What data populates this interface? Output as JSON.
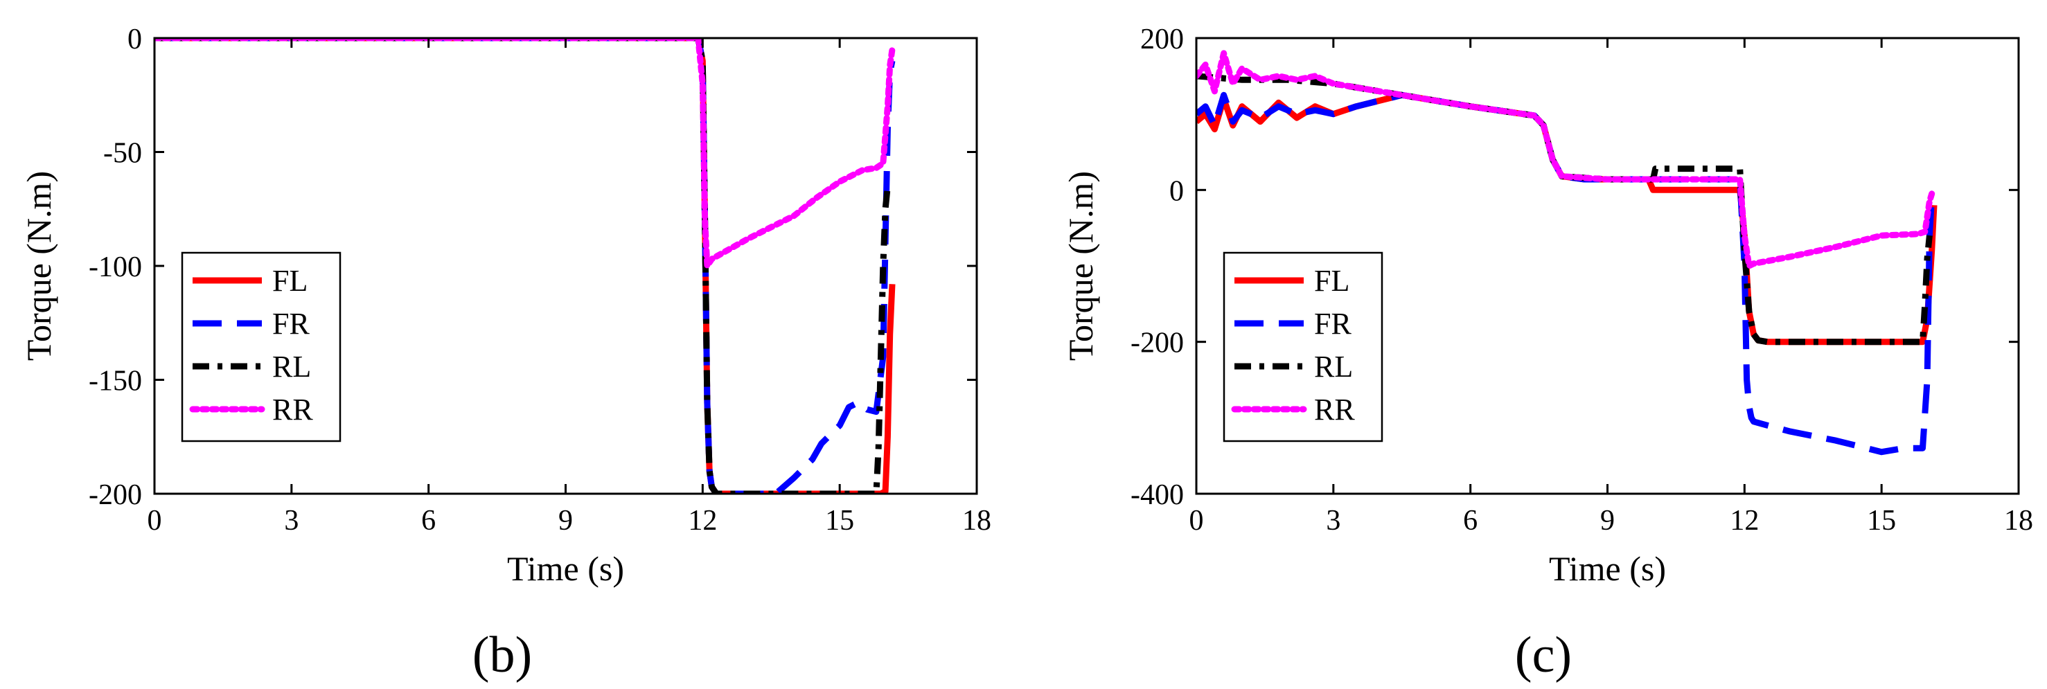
{
  "chart_data": [
    {
      "panel": "(b)",
      "type": "line",
      "xlabel": "Time (s)",
      "ylabel": "Torque (N.m)",
      "xlim": [
        0,
        18
      ],
      "ylim": [
        -200,
        0
      ],
      "xticks": [
        0,
        3,
        6,
        9,
        12,
        15,
        18
      ],
      "yticks": [
        0,
        -50,
        -100,
        -150,
        -200
      ],
      "grid": false,
      "legend": "middle-left",
      "series": [
        {
          "name": "FL",
          "color": "#ff0000",
          "style": "solid",
          "x": [
            0,
            11.9,
            12.0,
            12.05,
            12.1,
            12.15,
            12.2,
            12.3,
            12.5,
            15.0,
            15.9,
            16.0,
            16.05,
            16.1,
            16.15
          ],
          "y": [
            0,
            0,
            -10,
            -80,
            -160,
            -190,
            -197,
            -200,
            -200,
            -200,
            -200,
            -199,
            -175,
            -130,
            -108
          ]
        },
        {
          "name": "FR",
          "color": "#0000ff",
          "style": "dashed",
          "x": [
            0,
            11.9,
            12.0,
            12.05,
            12.1,
            12.15,
            12.2,
            12.3,
            13.6,
            14.0,
            14.4,
            14.6,
            15.0,
            15.2,
            15.4,
            15.6,
            15.8,
            15.95,
            16.0,
            16.05,
            16.1,
            16.15
          ],
          "y": [
            0,
            0,
            -10,
            -80,
            -160,
            -190,
            -197,
            -200,
            -200,
            -193,
            -185,
            -178,
            -170,
            -162,
            -160,
            -163,
            -164,
            -140,
            -90,
            -40,
            -15,
            -10
          ]
        },
        {
          "name": "RL",
          "color": "#000000",
          "style": "dashdot",
          "x": [
            0,
            11.9,
            12.0,
            12.05,
            12.1,
            12.15,
            12.2,
            12.3,
            12.5,
            15.0,
            15.8,
            15.85,
            15.9,
            15.95,
            16.0,
            16.05
          ],
          "y": [
            0,
            0,
            -10,
            -80,
            -160,
            -190,
            -197,
            -200,
            -200,
            -200,
            -200,
            -180,
            -140,
            -100,
            -75,
            -65
          ]
        },
        {
          "name": "RR",
          "color": "#ff00ff",
          "style": "dotted",
          "x": [
            0,
            11.9,
            12.0,
            12.05,
            12.1,
            12.2,
            13.0,
            14.0,
            14.5,
            15.0,
            15.5,
            15.8,
            15.95,
            16.05,
            16.1,
            16.15
          ],
          "y": [
            0,
            0,
            -20,
            -80,
            -100,
            -97,
            -88,
            -78,
            -70,
            -63,
            -58,
            -57,
            -55,
            -30,
            -12,
            -5
          ]
        }
      ]
    },
    {
      "panel": "(c)",
      "type": "line",
      "xlabel": "Time (s)",
      "ylabel": "Torque (N.m)",
      "xlim": [
        0,
        18
      ],
      "ylim": [
        -400,
        200
      ],
      "xticks": [
        0,
        3,
        6,
        9,
        12,
        15,
        18
      ],
      "yticks": [
        200,
        0,
        -200,
        -400
      ],
      "grid": false,
      "legend": "lower-left",
      "series": [
        {
          "name": "FL",
          "color": "#ff0000",
          "style": "solid",
          "x": [
            0,
            0.2,
            0.4,
            0.6,
            0.8,
            1.0,
            1.4,
            1.8,
            2.2,
            2.6,
            3.0,
            3.5,
            4.5,
            6.0,
            7.4,
            7.6,
            7.8,
            8.0,
            8.5,
            9.0,
            9.9,
            10.0,
            11.9,
            12.0,
            12.1,
            12.2,
            12.3,
            12.5,
            15.9,
            16.0,
            16.1,
            16.15
          ],
          "y": [
            90,
            100,
            80,
            120,
            85,
            110,
            90,
            115,
            95,
            110,
            100,
            110,
            125,
            110,
            98,
            85,
            40,
            18,
            14,
            14,
            14,
            0,
            0,
            -60,
            -160,
            -190,
            -198,
            -200,
            -200,
            -170,
            -80,
            -20
          ]
        },
        {
          "name": "FR",
          "color": "#0000ff",
          "style": "dashed",
          "x": [
            0,
            0.2,
            0.4,
            0.6,
            0.8,
            1.0,
            1.4,
            1.8,
            2.2,
            2.6,
            3.0,
            3.5,
            4.5,
            6.0,
            7.4,
            7.6,
            7.8,
            8.0,
            8.5,
            9.0,
            10.0,
            11.9,
            12.0,
            12.05,
            12.1,
            12.15,
            12.2,
            12.5,
            13.0,
            14.0,
            15.0,
            15.5,
            15.9,
            16.0,
            16.05,
            16.1
          ],
          "y": [
            100,
            110,
            85,
            125,
            90,
            105,
            95,
            110,
            100,
            105,
            100,
            110,
            125,
            110,
            98,
            85,
            40,
            18,
            14,
            14,
            14,
            14,
            -100,
            -250,
            -285,
            -300,
            -305,
            -310,
            -318,
            -330,
            -345,
            -340,
            -340,
            -250,
            -60,
            -10
          ]
        },
        {
          "name": "RL",
          "color": "#000000",
          "style": "dashdot",
          "x": [
            0,
            1.0,
            2.0,
            3.0,
            4.5,
            6.0,
            7.4,
            7.6,
            7.8,
            8.0,
            9.0,
            10.0,
            10.05,
            11.9,
            12.0,
            12.1,
            12.2,
            12.3,
            12.5,
            15.9,
            15.95,
            16.0,
            16.05
          ],
          "y": [
            150,
            145,
            145,
            140,
            125,
            110,
            98,
            85,
            40,
            18,
            14,
            14,
            28,
            28,
            -80,
            -160,
            -190,
            -198,
            -200,
            -200,
            -150,
            -90,
            -60
          ]
        },
        {
          "name": "RR",
          "color": "#ff00ff",
          "style": "dotted",
          "x": [
            0,
            0.2,
            0.4,
            0.6,
            0.8,
            1.0,
            1.4,
            1.8,
            2.2,
            2.6,
            3.0,
            4.5,
            6.0,
            7.4,
            7.6,
            7.8,
            8.0,
            9.0,
            10.0,
            11.9,
            12.0,
            12.1,
            12.2,
            13.0,
            14.0,
            15.0,
            15.8,
            15.95,
            16.05,
            16.1
          ],
          "y": [
            150,
            165,
            130,
            180,
            140,
            160,
            145,
            150,
            145,
            150,
            140,
            125,
            110,
            98,
            85,
            40,
            18,
            14,
            14,
            14,
            -60,
            -100,
            -97,
            -88,
            -75,
            -60,
            -58,
            -55,
            -15,
            -5
          ]
        }
      ]
    }
  ]
}
